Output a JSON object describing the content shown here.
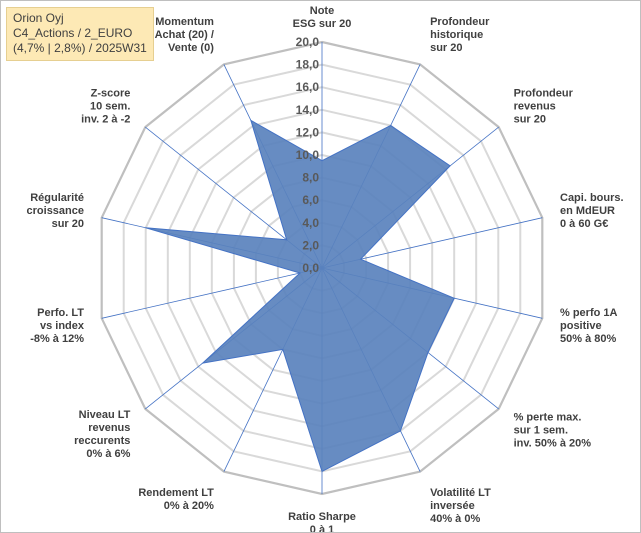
{
  "info_box": {
    "line1": "Orion Oyj",
    "line2": "C4_Actions / 2_EURO",
    "line3": "(4,7% | 2,8%) / 2025W31"
  },
  "colors": {
    "fill": "#5a82bd",
    "stroke": "#4472c4",
    "grid": "#d9d9d9",
    "spoke": "#4472c4"
  },
  "chart_data": {
    "type": "radar",
    "rmin": 0,
    "rmax": 20,
    "ticks": [
      "0,0",
      "2,0",
      "4,0",
      "6,0",
      "8,0",
      "10,0",
      "12,0",
      "14,0",
      "16,0",
      "18,0",
      "20,0"
    ],
    "tick_values": [
      0,
      2,
      4,
      6,
      8,
      10,
      12,
      14,
      16,
      18,
      20
    ],
    "grid": true,
    "categories": [
      [
        "Note",
        "ESG sur 20"
      ],
      [
        "Profondeur",
        "historique",
        "sur 20"
      ],
      [
        "Profondeur",
        "revenus",
        "sur 20"
      ],
      [
        "Capi. bours.",
        "en MdEUR",
        "0 à 60 G€"
      ],
      [
        "% perfo 1A",
        "positive",
        "50% à 80%"
      ],
      [
        "% perte max.",
        "sur 1 sem.",
        "inv. 50% à 20%"
      ],
      [
        "Volatilité LT",
        "inversée",
        "40% à 0%"
      ],
      [
        "Ratio Sharpe",
        "0 à 1"
      ],
      [
        "Rendement LT",
        "0% à 20%"
      ],
      [
        "Niveau LT",
        "revenus",
        "reccurents",
        "0% à 6%"
      ],
      [
        "Perfo. LT",
        "vs index",
        "-8% à 12%"
      ],
      [
        "Régularité",
        "croissance",
        "sur 20"
      ],
      [
        "Z-score",
        "10 sem.",
        "inv. 2 à -2"
      ],
      [
        "Momentum",
        "Achat (20) /",
        "Vente (0)"
      ]
    ],
    "series": [
      {
        "values": [
          9.5,
          14.0,
          14.5,
          3.5,
          12.0,
          12.0,
          16.0,
          18.0,
          8.0,
          13.5,
          2.0,
          16.0,
          4.0,
          14.5
        ]
      }
    ]
  }
}
